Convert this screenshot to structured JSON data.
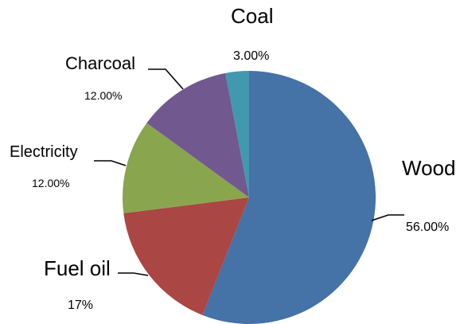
{
  "chart_data": {
    "type": "pie",
    "title": "",
    "slices": [
      {
        "label": "Wood",
        "value": 56,
        "value_label": "56.00%",
        "color": "#4572A7"
      },
      {
        "label": "Fuel oil",
        "value": 17,
        "value_label": "17%",
        "color": "#AA4643"
      },
      {
        "label": "Electricity",
        "value": 12,
        "value_label": "12.00%",
        "color": "#89A54E"
      },
      {
        "label": "Charcoal",
        "value": 12,
        "value_label": "12.00%",
        "color": "#71588F"
      },
      {
        "label": "Coal",
        "value": 3,
        "value_label": "3.00%",
        "color": "#4198AF"
      }
    ],
    "start_angle": "12 o'clock",
    "direction": "clockwise",
    "legend": "none",
    "labels": "outside with leader lines"
  }
}
